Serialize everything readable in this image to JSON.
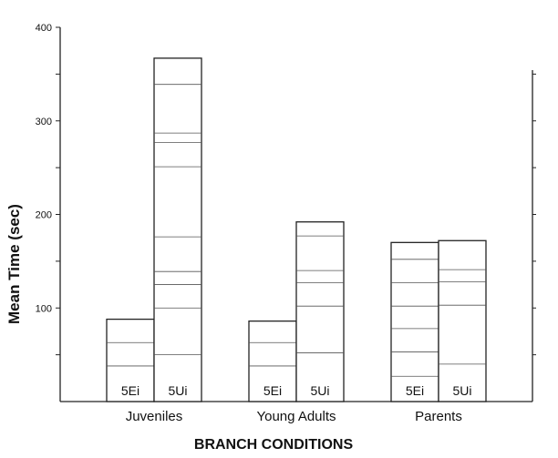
{
  "chart_data": {
    "type": "bar",
    "xlabel": "BRANCH CONDITIONS",
    "ylabel": "Mean Time (sec)",
    "ylim": [
      0,
      400
    ],
    "yticks": [
      100,
      200,
      300,
      400
    ],
    "grid": false,
    "categories": [
      "Juveniles",
      "Young Adults",
      "Parents"
    ],
    "series": [
      {
        "name": "5Ei",
        "values": [
          88,
          86,
          170
        ]
      },
      {
        "name": "5Ui",
        "values": [
          367,
          192,
          172
        ]
      }
    ],
    "bar_labels": [
      [
        "5Ei",
        "5Ui"
      ],
      [
        "5Ei",
        "5Ui"
      ],
      [
        "5Ei",
        "5Ui"
      ]
    ],
    "inner_lines": [
      [
        [
          38,
          63
        ],
        [
          50,
          100,
          125,
          139,
          176,
          251,
          277,
          287,
          339
        ]
      ],
      [
        [
          38,
          63
        ],
        [
          52,
          102,
          127,
          140,
          177
        ]
      ],
      [
        [
          27,
          53,
          78,
          102,
          127,
          152
        ],
        [
          40,
          103,
          128,
          141
        ]
      ]
    ]
  }
}
